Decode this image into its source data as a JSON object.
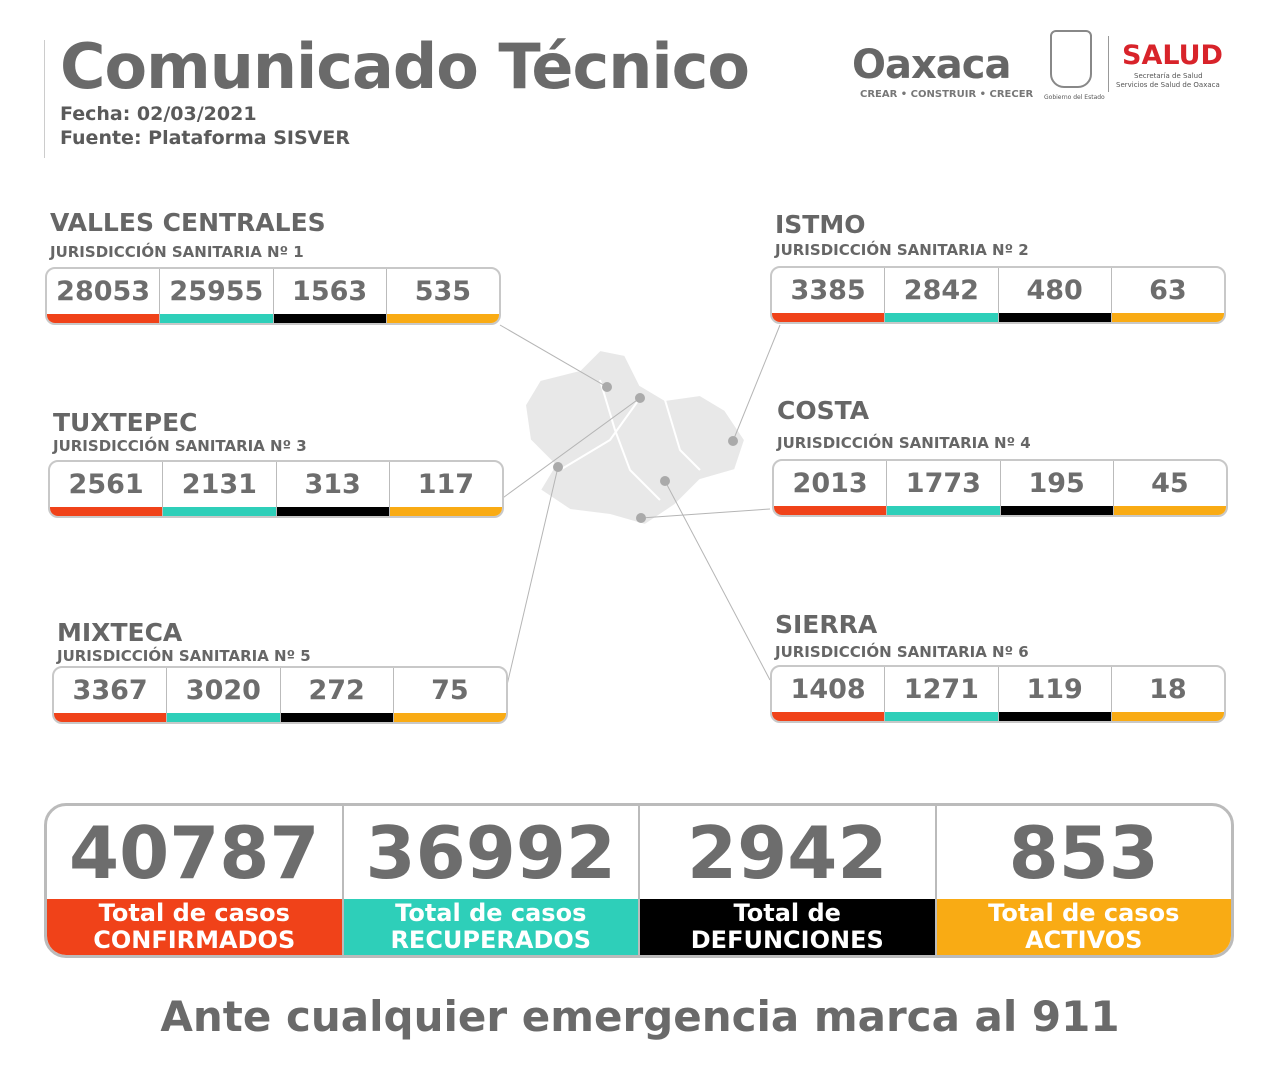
{
  "header": {
    "title": "Comunicado Técnico",
    "date": "Fecha: 02/03/2021",
    "source": "Fuente: Plataforma SISVER"
  },
  "logos": {
    "oaxaca": "Oaxaca",
    "oaxaca_tagline": "CREAR • CONSTRUIR • CRECER",
    "gobierno": "Gobierno del Estado",
    "salud": "SALUD",
    "salud_sub1": "Secretaría de Salud",
    "salud_sub2": "Servicios de Salud de Oaxaca"
  },
  "colors": {
    "confirmados": "#f04219",
    "recuperados": "#2ecfb9",
    "defunciones": "#000000",
    "activos": "#f9ab14"
  },
  "regions": [
    {
      "name": "VALLES CENTRALES",
      "jurisdiction": "JURISDICCIÓN SANITARIA Nº 1",
      "values": [
        "28053",
        "25955",
        "1563",
        "535"
      ]
    },
    {
      "name": "ISTMO",
      "jurisdiction": "JURISDICCIÓN SANITARIA Nº 2",
      "values": [
        "3385",
        "2842",
        "480",
        "63"
      ]
    },
    {
      "name": "TUXTEPEC",
      "jurisdiction": "JURISDICCIÓN SANITARIA Nº 3",
      "values": [
        "2561",
        "2131",
        "313",
        "117"
      ]
    },
    {
      "name": "COSTA",
      "jurisdiction": "JURISDICCIÓN SANITARIA Nº 4",
      "values": [
        "2013",
        "1773",
        "195",
        "45"
      ]
    },
    {
      "name": "MIXTECA",
      "jurisdiction": "JURISDICCIÓN SANITARIA Nº 5",
      "values": [
        "3367",
        "3020",
        "272",
        "75"
      ]
    },
    {
      "name": "SIERRA",
      "jurisdiction": "JURISDICCIÓN SANITARIA Nº 6",
      "values": [
        "1408",
        "1271",
        "119",
        "18"
      ]
    }
  ],
  "totals": [
    {
      "value": "40787",
      "line1": "Total de casos",
      "line2": "CONFIRMADOS"
    },
    {
      "value": "36992",
      "line1": "Total de casos",
      "line2": "RECUPERADOS"
    },
    {
      "value": "2942",
      "line1": "Total de",
      "line2": "DEFUNCIONES"
    },
    {
      "value": "853",
      "line1": "Total de casos",
      "line2": "ACTIVOS"
    }
  ],
  "footer": "Ante cualquier emergencia marca al 911"
}
